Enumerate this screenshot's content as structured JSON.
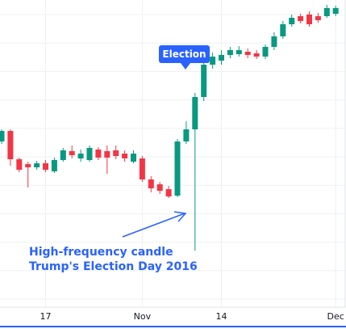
{
  "chart_data": {
    "type": "candlestick",
    "categories": [
      null,
      null,
      null,
      null,
      null,
      "17",
      null,
      null,
      null,
      null,
      null,
      null,
      null,
      null,
      null,
      null,
      "Nov",
      null,
      null,
      null,
      null,
      null,
      null,
      null,
      null,
      "14",
      null,
      null,
      null,
      null,
      null,
      null,
      null,
      null,
      null,
      null,
      null,
      null,
      "Dec"
    ],
    "open": [
      232,
      245,
      210,
      204,
      200,
      205,
      195,
      209,
      220,
      211,
      209,
      222,
      220,
      221,
      217,
      207,
      211,
      185,
      179,
      173,
      165,
      232,
      247,
      287,
      327,
      332,
      339,
      340,
      343,
      341,
      337,
      349,
      362,
      377,
      387,
      389,
      387,
      387,
      390
    ],
    "high": [
      247,
      247,
      212,
      207,
      208,
      209,
      212,
      224,
      227,
      222,
      227,
      225,
      227,
      227,
      221,
      221,
      214,
      189,
      182,
      177,
      235,
      257,
      292,
      332,
      342,
      345,
      349,
      350,
      347,
      345,
      352,
      367,
      381,
      389,
      390,
      393,
      391,
      401,
      400
    ],
    "low": [
      229,
      202,
      194,
      175,
      197,
      194,
      193,
      207,
      211,
      207,
      207,
      209,
      192,
      210,
      207,
      205,
      182,
      169,
      167,
      162,
      163,
      229,
      97,
      282,
      322,
      327,
      335,
      337,
      335,
      334,
      334,
      345,
      359,
      374,
      378,
      374,
      379,
      385,
      387
    ],
    "close": [
      245,
      210,
      197,
      200,
      205,
      197,
      209,
      221,
      215,
      217,
      224,
      212,
      212,
      214,
      211,
      217,
      185,
      174,
      171,
      164,
      232,
      247,
      287,
      327,
      337,
      339,
      345,
      345,
      339,
      337,
      349,
      362,
      377,
      385,
      381,
      377,
      382,
      397,
      397
    ],
    "up_color": "#089981",
    "down_color": "#f23645",
    "ylim": [
      27,
      407
    ],
    "annotations": {
      "badge": "Election",
      "note": [
        "High-frequency candle",
        "Trump's Election Day 2016"
      ]
    }
  }
}
